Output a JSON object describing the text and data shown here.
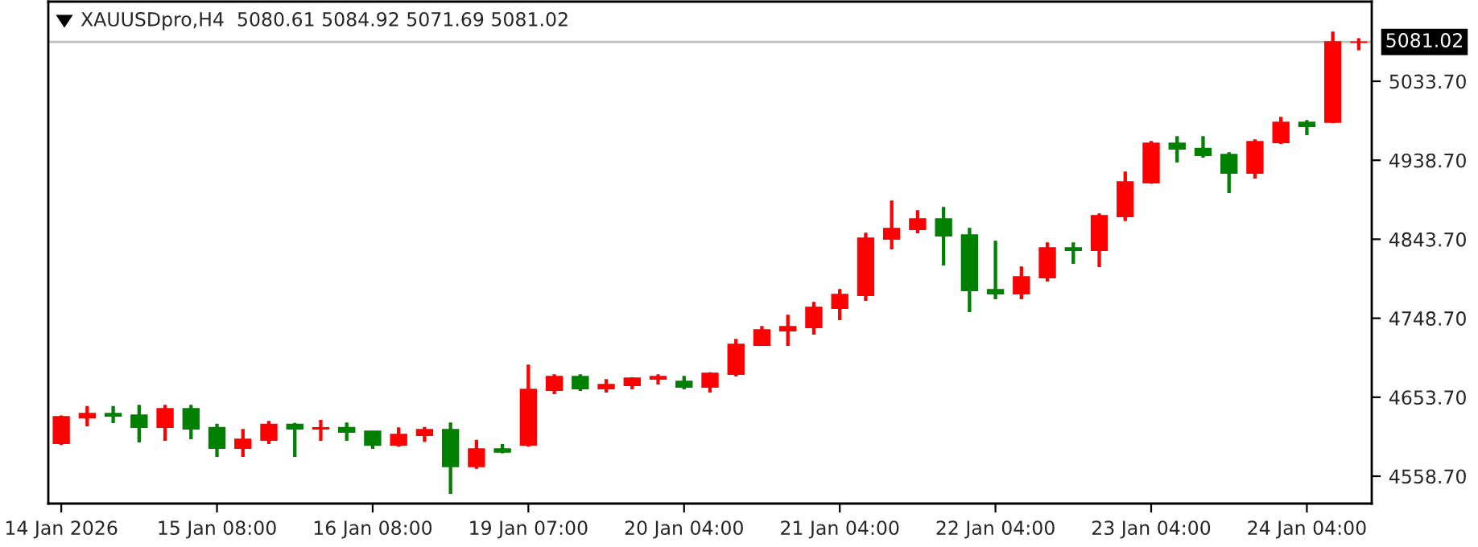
{
  "chart_data": {
    "type": "candlestick",
    "title": "XAUUSDpro,H4  5080.61 5084.92 5071.69 5081.02",
    "categories": [
      "14 Jan 2026",
      null,
      null,
      null,
      null,
      null,
      "15 Jan 08:00",
      null,
      null,
      null,
      null,
      null,
      "16 Jan 08:00",
      null,
      null,
      null,
      null,
      null,
      "19 Jan 07:00",
      null,
      null,
      null,
      null,
      null,
      "20 Jan 04:00",
      null,
      null,
      null,
      null,
      null,
      "21 Jan 04:00",
      null,
      null,
      null,
      null,
      null,
      "22 Jan 04:00",
      null,
      null,
      null,
      null,
      null,
      "23 Jan 04:00",
      null,
      null,
      null,
      null,
      null,
      "24 Jan 04:00",
      null,
      null
    ],
    "ohlc": [
      [
        4598.0,
        4631.0,
        4597.0,
        4630.3
      ],
      [
        4628.9,
        4642.5,
        4619.3,
        4634.2
      ],
      [
        4634.2,
        4642.5,
        4623.1,
        4630.9
      ],
      [
        4632.2,
        4643.8,
        4599.9,
        4617.3
      ],
      [
        4617.3,
        4643.8,
        4601.9,
        4640.0
      ],
      [
        4640.0,
        4643.8,
        4603.8,
        4615.4
      ],
      [
        4617.3,
        4621.2,
        4582.5,
        4592.2
      ],
      [
        4592.2,
        4614.8,
        4582.5,
        4603.2
      ],
      [
        4601.9,
        4624.5,
        4598.0,
        4621.2
      ],
      [
        4621.2,
        4622.0,
        4582.5,
        4615.4
      ],
      [
        4615.4,
        4625.8,
        4601.9,
        4617.0
      ],
      [
        4617.3,
        4622.6,
        4601.9,
        4611.5
      ],
      [
        4612.9,
        4613.0,
        4592.2,
        4596.0
      ],
      [
        4596.0,
        4616.8,
        4595.0,
        4609.0
      ],
      [
        4607.7,
        4617.3,
        4600.7,
        4614.8
      ],
      [
        4614.8,
        4622.6,
        4538.0,
        4570.3
      ],
      [
        4570.3,
        4601.9,
        4568.4,
        4591.6
      ],
      [
        4591.6,
        4596.8,
        4587.0,
        4587.7
      ],
      [
        4596.0,
        4692.2,
        4595.0,
        4663.2
      ],
      [
        4661.9,
        4680.6,
        4658.0,
        4678.7
      ],
      [
        4678.7,
        4680.6,
        4662.0,
        4663.8
      ],
      [
        4663.8,
        4674.8,
        4659.9,
        4669.0
      ],
      [
        4667.7,
        4677.0,
        4663.8,
        4676.7
      ],
      [
        4675.4,
        4680.6,
        4669.6,
        4678.7
      ],
      [
        4672.9,
        4678.7,
        4663.8,
        4665.7
      ],
      [
        4665.7,
        4683.0,
        4659.9,
        4682.5
      ],
      [
        4681.2,
        4723.2,
        4679.3,
        4717.4
      ],
      [
        4716.0,
        4738.7,
        4716.0,
        4734.8
      ],
      [
        4733.4,
        4752.2,
        4716.0,
        4738.7
      ],
      [
        4737.3,
        4767.7,
        4729.6,
        4761.9
      ],
      [
        4760.5,
        4783.2,
        4747.0,
        4777.4
      ],
      [
        4776.0,
        4850.9,
        4770.2,
        4845.1
      ],
      [
        4843.7,
        4889.6,
        4832.1,
        4856.7
      ],
      [
        4855.3,
        4878.0,
        4851.5,
        4868.3
      ],
      [
        4868.3,
        4881.8,
        4812.8,
        4847.6
      ],
      [
        4849.0,
        4856.7,
        4756.7,
        4781.8
      ],
      [
        4783.2,
        4841.2,
        4772.1,
        4777.9
      ],
      [
        4777.9,
        4810.3,
        4772.1,
        4798.6
      ],
      [
        4797.3,
        4839.3,
        4793.4,
        4833.5
      ],
      [
        4833.5,
        4839.3,
        4814.7,
        4830.2
      ],
      [
        4830.2,
        4874.1,
        4810.8,
        4872.2
      ],
      [
        4870.8,
        4924.4,
        4866.4,
        4912.8
      ],
      [
        4911.5,
        4961.2,
        4911.0,
        4959.2
      ],
      [
        4959.2,
        4967.0,
        4936.6,
        4952.1
      ],
      [
        4952.9,
        4967.0,
        4942.4,
        4944.3
      ],
      [
        4945.7,
        4947.6,
        4899.8,
        4923.1
      ],
      [
        4923.1,
        4963.1,
        4917.3,
        4961.2
      ],
      [
        4959.8,
        4990.2,
        4959.0,
        4984.4
      ],
      [
        4984.4,
        4986.3,
        4969.5,
        4979.2
      ],
      [
        4984.4,
        5092.7,
        4984.0,
        5081.2
      ],
      [
        5080.61,
        5084.92,
        5071.69,
        5081.02
      ]
    ],
    "colors": [
      "#ff0000",
      "#ff0000",
      "#008000",
      "#008000",
      "#ff0000",
      "#008000",
      "#008000",
      "#ff0000",
      "#ff0000",
      "#008000",
      "#ff0000",
      "#008000",
      "#008000",
      "#ff0000",
      "#ff0000",
      "#008000",
      "#ff0000",
      "#008000",
      "#ff0000",
      "#ff0000",
      "#008000",
      "#ff0000",
      "#ff0000",
      "#ff0000",
      "#008000",
      "#ff0000",
      "#ff0000",
      "#ff0000",
      "#ff0000",
      "#ff0000",
      "#ff0000",
      "#ff0000",
      "#ff0000",
      "#ff0000",
      "#008000",
      "#008000",
      "#008000",
      "#ff0000",
      "#ff0000",
      "#008000",
      "#ff0000",
      "#ff0000",
      "#ff0000",
      "#008000",
      "#008000",
      "#008000",
      "#ff0000",
      "#ff0000",
      "#008000",
      "#ff0000",
      "#ff0000"
    ],
    "ylim": [
      4525.8,
      5129.5
    ],
    "yticks": [
      {
        "value": 4558.7,
        "label": "4558.70"
      },
      {
        "value": 4653.7,
        "label": "4653.70"
      },
      {
        "value": 4748.7,
        "label": "4748.70"
      },
      {
        "value": 4843.7,
        "label": "4843.70"
      },
      {
        "value": 4938.7,
        "label": "4938.70"
      },
      {
        "value": 5033.7,
        "label": "5033.70"
      }
    ],
    "ref_lines": [
      {
        "axis": "y",
        "value": 5081.02,
        "label": "5081.02",
        "color": "#c0c0c0"
      }
    ],
    "grid": false,
    "legend": false
  }
}
